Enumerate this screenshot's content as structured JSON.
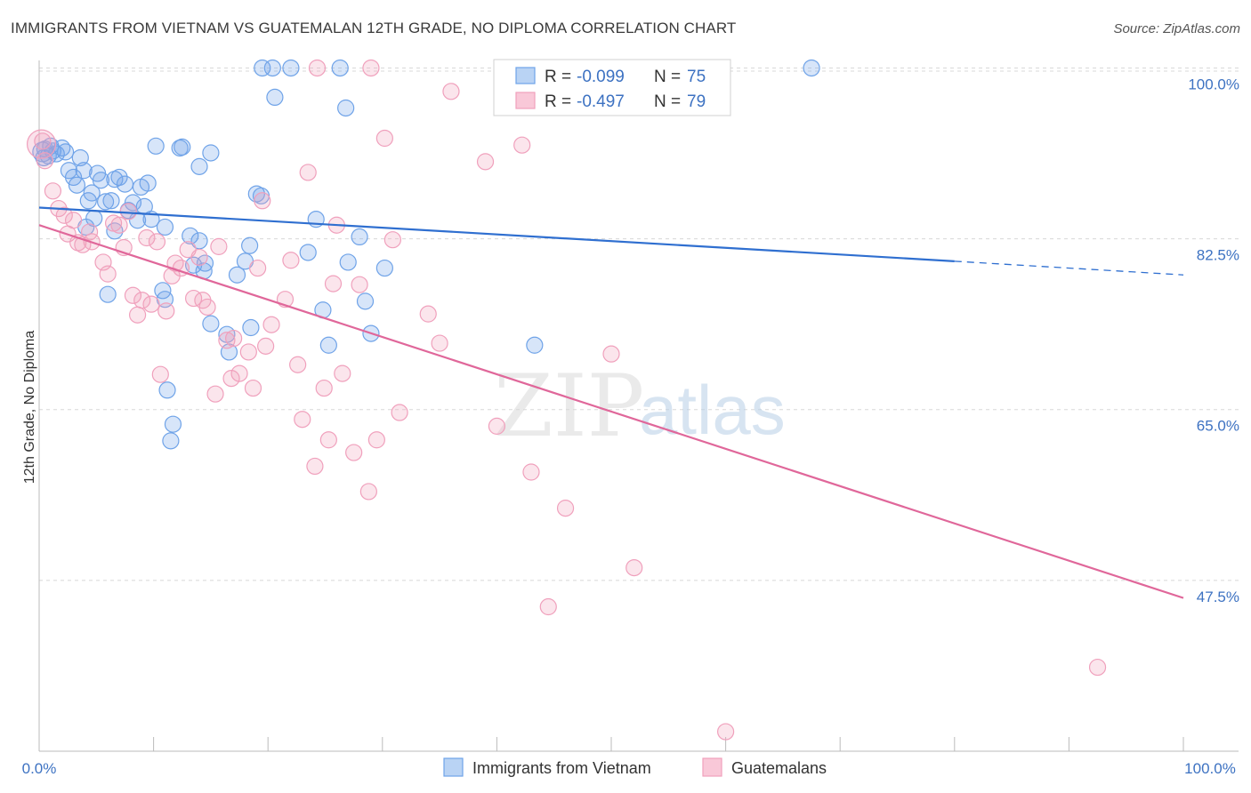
{
  "title": "IMMIGRANTS FROM VIETNAM VS GUATEMALAN 12TH GRADE, NO DIPLOMA CORRELATION CHART",
  "source": "Source: ZipAtlas.com",
  "watermark": {
    "zip": "ZIP",
    "atlas": "atlas"
  },
  "colors": {
    "blue": "#6fa3e8",
    "blue_line": "#2f6fd0",
    "pink": "#f0a0bc",
    "pink_line": "#e0679a",
    "tick": "#3d72c2"
  },
  "stats": [
    {
      "r_label": "R =",
      "r_value": "-0.099",
      "n_label": "N =",
      "n_value": "75"
    },
    {
      "r_label": "R =",
      "r_value": "-0.497",
      "n_label": "N =",
      "n_value": "79"
    }
  ],
  "chart_data": {
    "type": "scatter",
    "title": "IMMIGRANTS FROM VIETNAM VS GUATEMALAN 12TH GRADE, NO DIPLOMA CORRELATION CHART",
    "xlabel": "",
    "ylabel": "12th Grade, No Diploma",
    "xlim": [
      0,
      100
    ],
    "ylim": [
      30,
      101.5
    ],
    "x_tick_labels": [
      "0.0%",
      "100.0%"
    ],
    "y_ticks": [
      47.5,
      65.0,
      82.5,
      100.0
    ],
    "y_tick_labels": [
      "47.5%",
      "65.0%",
      "82.5%",
      "100.0%"
    ],
    "grid": "horizontal dashed",
    "legend": "bottom-center",
    "series": [
      {
        "name": "Immigrants from Vietnam",
        "color": "#6fa3e8",
        "trend": {
          "x0": 0,
          "y0": 85.7,
          "x1": 80,
          "y1": 80.2,
          "dash_to_x": 100,
          "dash_to_y": 78.8
        },
        "points": [
          [
            0.5,
            91.7
          ],
          [
            0.8,
            91.0
          ],
          [
            1.0,
            92.0
          ],
          [
            1.2,
            91.5
          ],
          [
            1.5,
            91.2
          ],
          [
            2.0,
            91.8
          ],
          [
            2.3,
            91.4
          ],
          [
            2.6,
            89.5
          ],
          [
            3.0,
            88.8
          ],
          [
            3.3,
            88.0
          ],
          [
            3.6,
            90.8
          ],
          [
            3.9,
            89.5
          ],
          [
            4.3,
            86.4
          ],
          [
            4.6,
            87.2
          ],
          [
            5.1,
            89.2
          ],
          [
            5.4,
            88.5
          ],
          [
            5.8,
            86.3
          ],
          [
            6.3,
            86.4
          ],
          [
            6.6,
            88.6
          ],
          [
            7.0,
            88.8
          ],
          [
            7.5,
            88.1
          ],
          [
            7.8,
            85.4
          ],
          [
            8.2,
            86.2
          ],
          [
            8.6,
            84.4
          ],
          [
            8.9,
            87.8
          ],
          [
            9.2,
            85.8
          ],
          [
            9.5,
            88.2
          ],
          [
            10.2,
            92.0
          ],
          [
            11.0,
            83.7
          ],
          [
            11.2,
            67.0
          ],
          [
            11.5,
            61.8
          ],
          [
            11.7,
            63.5
          ],
          [
            12.3,
            91.8
          ],
          [
            12.5,
            91.9
          ],
          [
            13.2,
            82.8
          ],
          [
            13.5,
            79.8
          ],
          [
            14.0,
            82.3
          ],
          [
            14.5,
            80.0
          ],
          [
            14.0,
            89.9
          ],
          [
            14.4,
            79.2
          ],
          [
            15.0,
            73.8
          ],
          [
            15.0,
            91.3
          ],
          [
            16.4,
            72.7
          ],
          [
            16.6,
            70.9
          ],
          [
            17.3,
            78.8
          ],
          [
            18.0,
            80.2
          ],
          [
            18.4,
            81.8
          ],
          [
            18.5,
            73.4
          ],
          [
            19.0,
            87.1
          ],
          [
            19.4,
            86.9
          ],
          [
            20.6,
            97.0
          ],
          [
            23.5,
            81.1
          ],
          [
            24.2,
            84.5
          ],
          [
            24.8,
            75.2
          ],
          [
            25.3,
            71.6
          ],
          [
            26.3,
            100.0
          ],
          [
            26.8,
            95.9
          ],
          [
            27.0,
            80.1
          ],
          [
            28.0,
            82.7
          ],
          [
            28.5,
            76.1
          ],
          [
            29.0,
            72.8
          ],
          [
            30.2,
            79.5
          ],
          [
            10.8,
            77.2
          ],
          [
            11.0,
            76.3
          ],
          [
            4.1,
            83.7
          ],
          [
            4.8,
            84.6
          ],
          [
            6.0,
            76.8
          ],
          [
            6.6,
            83.3
          ],
          [
            9.8,
            84.5
          ],
          [
            19.5,
            100.0
          ],
          [
            20.4,
            100.0
          ],
          [
            22.0,
            100.0
          ],
          [
            43.3,
            71.6
          ],
          [
            67.5,
            100.0
          ],
          [
            0.4,
            90.8
          ]
        ]
      },
      {
        "name": "Guatemalans",
        "color": "#f0a0bc",
        "trend": {
          "x0": 0,
          "y0": 83.9,
          "x1": 100,
          "y1": 45.7
        },
        "points": [
          [
            0.3,
            92.5
          ],
          [
            0.5,
            90.5
          ],
          [
            1.2,
            87.4
          ],
          [
            1.7,
            85.6
          ],
          [
            2.2,
            84.9
          ],
          [
            2.5,
            83.0
          ],
          [
            3.0,
            84.4
          ],
          [
            3.4,
            82.1
          ],
          [
            3.8,
            81.9
          ],
          [
            4.4,
            83.2
          ],
          [
            4.6,
            82.2
          ],
          [
            5.6,
            80.1
          ],
          [
            6.0,
            78.9
          ],
          [
            6.5,
            84.1
          ],
          [
            7.0,
            83.9
          ],
          [
            7.4,
            81.6
          ],
          [
            7.8,
            85.3
          ],
          [
            8.2,
            76.7
          ],
          [
            8.6,
            74.7
          ],
          [
            9.0,
            76.2
          ],
          [
            9.4,
            82.6
          ],
          [
            9.8,
            75.8
          ],
          [
            10.3,
            82.2
          ],
          [
            10.6,
            68.6
          ],
          [
            11.1,
            75.1
          ],
          [
            11.6,
            78.7
          ],
          [
            11.9,
            80.0
          ],
          [
            12.4,
            79.5
          ],
          [
            13.0,
            81.4
          ],
          [
            13.5,
            76.4
          ],
          [
            14.0,
            80.6
          ],
          [
            14.3,
            76.2
          ],
          [
            14.7,
            75.5
          ],
          [
            15.4,
            66.6
          ],
          [
            15.7,
            81.7
          ],
          [
            16.4,
            72.1
          ],
          [
            16.8,
            68.2
          ],
          [
            17.0,
            72.3
          ],
          [
            17.5,
            68.7
          ],
          [
            18.3,
            70.9
          ],
          [
            18.7,
            67.2
          ],
          [
            19.1,
            79.5
          ],
          [
            19.5,
            86.4
          ],
          [
            19.8,
            71.5
          ],
          [
            20.3,
            73.7
          ],
          [
            21.5,
            76.3
          ],
          [
            22.0,
            80.3
          ],
          [
            22.6,
            69.6
          ],
          [
            23.0,
            64.0
          ],
          [
            23.5,
            89.3
          ],
          [
            24.1,
            59.2
          ],
          [
            24.9,
            67.2
          ],
          [
            25.3,
            61.9
          ],
          [
            25.7,
            77.9
          ],
          [
            26.0,
            83.9
          ],
          [
            26.5,
            68.7
          ],
          [
            27.5,
            60.6
          ],
          [
            28.0,
            77.8
          ],
          [
            28.8,
            56.6
          ],
          [
            29.5,
            61.9
          ],
          [
            30.2,
            92.8
          ],
          [
            30.9,
            82.4
          ],
          [
            31.5,
            64.7
          ],
          [
            34.0,
            74.8
          ],
          [
            35.0,
            71.8
          ],
          [
            36.0,
            97.6
          ],
          [
            39.0,
            90.4
          ],
          [
            40.0,
            63.3
          ],
          [
            42.2,
            92.1
          ],
          [
            43.0,
            58.6
          ],
          [
            44.5,
            44.8
          ],
          [
            46.0,
            54.9
          ],
          [
            50.0,
            70.7
          ],
          [
            52.0,
            48.8
          ],
          [
            60.0,
            32.0
          ],
          [
            58.5,
            100.0
          ],
          [
            24.3,
            100.0
          ],
          [
            29.0,
            100.0
          ],
          [
            92.5,
            38.6
          ]
        ]
      }
    ]
  }
}
